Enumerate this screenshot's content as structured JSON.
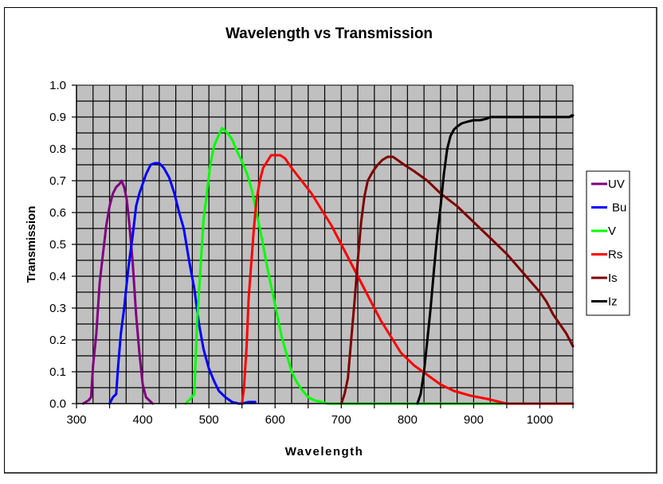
{
  "chart_data": {
    "type": "line",
    "title": "Wavelength vs Transmission",
    "xlabel": "Wavelength",
    "ylabel": "Transmission",
    "xlim": [
      300,
      1050
    ],
    "ylim": [
      0.0,
      1.0
    ],
    "x_ticks": [
      "300",
      "400",
      "500",
      "600",
      "700",
      "800",
      "900",
      "1000"
    ],
    "x_tick_values": [
      300,
      400,
      500,
      600,
      700,
      800,
      900,
      1000
    ],
    "y_ticks": [
      "0.0",
      "0.1",
      "0.2",
      "0.3",
      "0.4",
      "0.5",
      "0.6",
      "0.7",
      "0.8",
      "0.9",
      "1.0"
    ],
    "y_tick_values": [
      0,
      0.1,
      0.2,
      0.3,
      0.4,
      0.5,
      0.6,
      0.7,
      0.8,
      0.9,
      1.0
    ],
    "grid": true,
    "grid_minor_x": 25,
    "grid_minor_y": 0.05,
    "plot_background": "#c0c0c0",
    "legend_position": "right",
    "series": [
      {
        "name": "UV",
        "color": "#800080",
        "x": [
          310,
          318,
          322,
          325,
          330,
          335,
          340,
          345,
          350,
          355,
          360,
          365,
          368,
          372,
          376,
          380,
          385,
          390,
          395,
          400,
          405,
          410,
          415
        ],
        "y": [
          0.0,
          0.01,
          0.02,
          0.12,
          0.22,
          0.38,
          0.47,
          0.56,
          0.62,
          0.66,
          0.68,
          0.69,
          0.7,
          0.68,
          0.64,
          0.56,
          0.44,
          0.28,
          0.16,
          0.06,
          0.02,
          0.01,
          0.0
        ]
      },
      {
        "name": "Bu",
        "color": "#0000ff",
        "x": [
          350,
          355,
          360,
          363,
          367,
          372,
          378,
          385,
          390,
          395,
          400,
          405,
          412,
          418,
          425,
          432,
          440,
          448,
          455,
          462,
          470,
          478,
          485,
          492,
          500,
          508,
          515,
          525,
          535,
          545,
          550,
          560,
          570
        ],
        "y": [
          0.0,
          0.02,
          0.03,
          0.12,
          0.22,
          0.3,
          0.42,
          0.53,
          0.62,
          0.66,
          0.69,
          0.72,
          0.75,
          0.755,
          0.755,
          0.74,
          0.71,
          0.66,
          0.6,
          0.55,
          0.45,
          0.36,
          0.25,
          0.17,
          0.11,
          0.07,
          0.04,
          0.02,
          0.005,
          0.0,
          0.0,
          0.005,
          0.005
        ]
      },
      {
        "name": "V",
        "color": "#00ff00",
        "x": [
          465,
          472,
          478,
          482,
          488,
          492,
          497,
          502,
          508,
          514,
          520,
          528,
          535,
          543,
          550,
          558,
          565,
          572,
          580,
          588,
          595,
          603,
          610,
          618,
          625,
          632,
          640,
          650,
          660,
          670,
          680,
          700,
          820,
          900,
          1050
        ],
        "y": [
          0.0,
          0.015,
          0.03,
          0.25,
          0.45,
          0.58,
          0.66,
          0.75,
          0.81,
          0.84,
          0.865,
          0.85,
          0.83,
          0.79,
          0.76,
          0.72,
          0.67,
          0.6,
          0.52,
          0.43,
          0.36,
          0.28,
          0.21,
          0.15,
          0.1,
          0.07,
          0.045,
          0.02,
          0.01,
          0.005,
          0.0,
          0.0,
          0.0,
          0.0,
          0.0
        ]
      },
      {
        "name": "Rs",
        "color": "#ff0000",
        "x": [
          550,
          553,
          557,
          560,
          564,
          568,
          572,
          577,
          582,
          588,
          594,
          600,
          608,
          615,
          625,
          640,
          655,
          670,
          685,
          700,
          715,
          730,
          745,
          760,
          775,
          790,
          810,
          830,
          850,
          870,
          895,
          920,
          950,
          1000,
          1050
        ],
        "y": [
          0.0,
          0.05,
          0.18,
          0.33,
          0.44,
          0.55,
          0.64,
          0.7,
          0.74,
          0.76,
          0.78,
          0.78,
          0.78,
          0.77,
          0.74,
          0.7,
          0.66,
          0.61,
          0.56,
          0.5,
          0.44,
          0.38,
          0.32,
          0.26,
          0.21,
          0.16,
          0.12,
          0.09,
          0.06,
          0.04,
          0.025,
          0.015,
          0.0,
          0.0,
          0.0
        ]
      },
      {
        "name": "Is",
        "color": "#800000",
        "x": [
          700,
          705,
          710,
          715,
          720,
          725,
          730,
          735,
          740,
          748,
          755,
          762,
          770,
          778,
          785,
          795,
          810,
          830,
          850,
          875,
          900,
          925,
          950,
          975,
          1000,
          1010,
          1020,
          1030,
          1040,
          1050
        ],
        "y": [
          0.0,
          0.03,
          0.08,
          0.2,
          0.32,
          0.45,
          0.57,
          0.65,
          0.7,
          0.73,
          0.75,
          0.765,
          0.775,
          0.775,
          0.765,
          0.75,
          0.73,
          0.7,
          0.66,
          0.62,
          0.57,
          0.52,
          0.47,
          0.41,
          0.35,
          0.32,
          0.28,
          0.25,
          0.22,
          0.18
        ]
      },
      {
        "name": "Iz",
        "color": "#000000",
        "x": [
          815,
          820,
          825,
          830,
          835,
          840,
          845,
          850,
          855,
          860,
          865,
          870,
          875,
          882,
          890,
          900,
          910,
          920,
          925,
          935,
          950,
          975,
          1000,
          1025,
          1045,
          1048,
          1050
        ],
        "y": [
          0.0,
          0.03,
          0.1,
          0.2,
          0.3,
          0.42,
          0.53,
          0.62,
          0.72,
          0.8,
          0.84,
          0.86,
          0.87,
          0.88,
          0.885,
          0.89,
          0.89,
          0.895,
          0.9,
          0.9,
          0.9,
          0.9,
          0.9,
          0.9,
          0.9,
          0.905,
          0.905
        ]
      }
    ]
  }
}
